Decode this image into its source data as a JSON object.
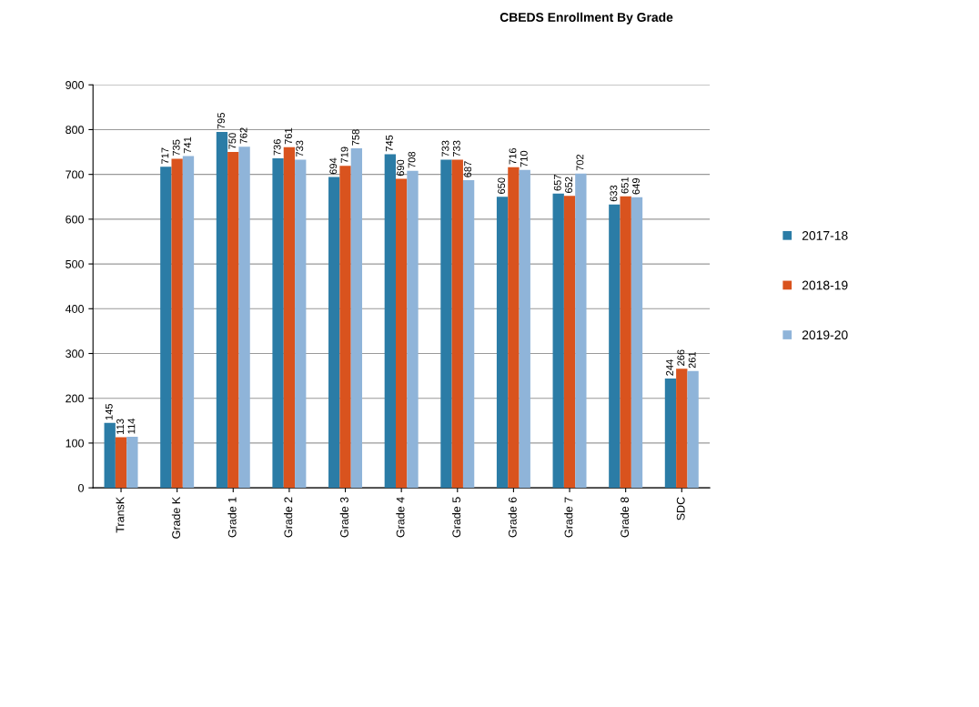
{
  "chart_data": {
    "type": "bar",
    "title": "CBEDS Enrollment By Grade",
    "categories": [
      "TransK",
      "Grade K",
      "Grade 1",
      "Grade 2",
      "Grade 3",
      "Grade 4",
      "Grade 5",
      "Grade 6",
      "Grade 7",
      "Grade 8",
      "SDC"
    ],
    "series": [
      {
        "name": "2017-18",
        "color": "#2b7ca6",
        "values": [
          145,
          717,
          795,
          736,
          694,
          745,
          733,
          650,
          657,
          633,
          244
        ]
      },
      {
        "name": "2018-19",
        "color": "#d9531e",
        "values": [
          113,
          735,
          750,
          761,
          719,
          690,
          733,
          716,
          652,
          651,
          266
        ]
      },
      {
        "name": "2019-20",
        "color": "#8fb4d9",
        "values": [
          114,
          741,
          762,
          733,
          758,
          708,
          687,
          710,
          702,
          649,
          261
        ]
      }
    ],
    "ylim": [
      0,
      900
    ],
    "yticks": [
      0,
      100,
      200,
      300,
      400,
      500,
      600,
      700,
      800,
      900
    ],
    "grid": "y",
    "legend": "right",
    "data_labels": true
  }
}
